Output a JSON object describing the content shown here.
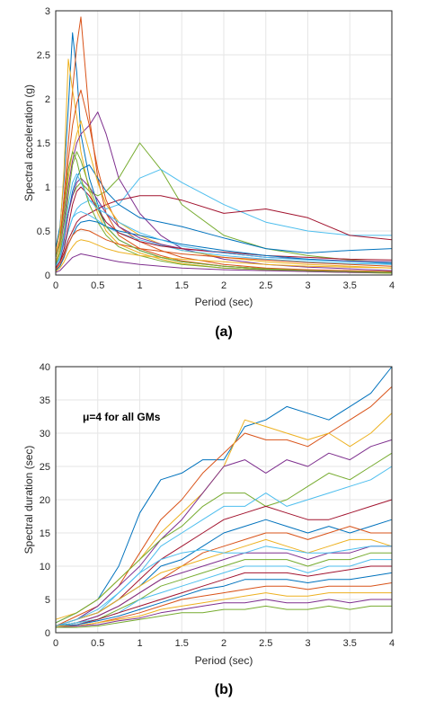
{
  "panels": [
    {
      "caption": "(a)"
    },
    {
      "caption": "(b)"
    }
  ],
  "palette": [
    "#0072BD",
    "#D95319",
    "#EDB120",
    "#7E2F8E",
    "#77AC30",
    "#4DBEEE",
    "#A2142F"
  ],
  "chart_data": [
    {
      "type": "line",
      "xlabel": "Period (sec)",
      "ylabel": "Spectral acceleration (g)",
      "xlim": [
        0,
        4
      ],
      "ylim": [
        0,
        3
      ],
      "xticks": [
        "0",
        "0.5",
        "1",
        "1.5",
        "2",
        "2.5",
        "3",
        "3.5",
        "4"
      ],
      "yticks": [
        "0",
        "0.5",
        "1",
        "1.5",
        "2",
        "2.5",
        "3"
      ],
      "grid": true,
      "x": [
        0,
        0.05,
        0.1,
        0.15,
        0.2,
        0.25,
        0.3,
        0.4,
        0.5,
        0.6,
        0.75,
        1.0,
        1.25,
        1.5,
        2.0,
        2.5,
        3.0,
        3.5,
        4.0
      ],
      "series": [
        {
          "values": [
            0.3,
            0.55,
            1.1,
            1.9,
            2.75,
            2.3,
            1.6,
            1.1,
            0.8,
            0.55,
            0.4,
            0.28,
            0.2,
            0.15,
            0.1,
            0.07,
            0.05,
            0.04,
            0.03
          ]
        },
        {
          "values": [
            0.2,
            0.4,
            0.9,
            1.5,
            2.1,
            2.6,
            2.93,
            1.8,
            1.1,
            0.7,
            0.45,
            0.3,
            0.22,
            0.16,
            0.1,
            0.07,
            0.05,
            0.04,
            0.03
          ]
        },
        {
          "values": [
            0.25,
            0.5,
            1.2,
            2.45,
            2.1,
            1.8,
            1.4,
            0.95,
            0.7,
            0.5,
            0.35,
            0.25,
            0.18,
            0.13,
            0.08,
            0.06,
            0.04,
            0.03,
            0.02
          ]
        },
        {
          "values": [
            0.15,
            0.3,
            0.6,
            1.0,
            1.3,
            1.5,
            1.6,
            1.7,
            1.85,
            1.6,
            1.1,
            0.7,
            0.45,
            0.3,
            0.18,
            0.12,
            0.09,
            0.07,
            0.05
          ]
        },
        {
          "values": [
            0.12,
            0.25,
            0.45,
            0.7,
            0.9,
            1.0,
            1.05,
            0.95,
            0.9,
            0.95,
            1.1,
            1.5,
            1.2,
            0.8,
            0.45,
            0.3,
            0.22,
            0.17,
            0.14
          ]
        },
        {
          "values": [
            0.1,
            0.2,
            0.35,
            0.5,
            0.65,
            0.75,
            0.8,
            0.85,
            0.8,
            0.75,
            0.8,
            1.1,
            1.2,
            1.05,
            0.8,
            0.6,
            0.5,
            0.45,
            0.45
          ]
        },
        {
          "values": [
            0.08,
            0.15,
            0.25,
            0.4,
            0.5,
            0.6,
            0.65,
            0.7,
            0.75,
            0.8,
            0.85,
            0.9,
            0.9,
            0.85,
            0.7,
            0.75,
            0.65,
            0.45,
            0.4
          ]
        },
        {
          "values": [
            0.1,
            0.2,
            0.4,
            0.7,
            0.95,
            1.1,
            1.2,
            1.25,
            1.1,
            0.95,
            0.8,
            0.65,
            0.6,
            0.55,
            0.42,
            0.3,
            0.25,
            0.28,
            0.3
          ]
        },
        {
          "values": [
            0.2,
            0.4,
            0.8,
            1.3,
            1.7,
            1.95,
            2.1,
            1.7,
            1.2,
            0.85,
            0.55,
            0.38,
            0.28,
            0.2,
            0.12,
            0.08,
            0.06,
            0.05,
            0.04
          ]
        },
        {
          "values": [
            0.15,
            0.3,
            0.7,
            1.1,
            1.4,
            1.6,
            1.75,
            1.4,
            1.05,
            0.8,
            0.6,
            0.45,
            0.35,
            0.28,
            0.2,
            0.15,
            0.12,
            0.1,
            0.08
          ]
        },
        {
          "values": [
            0.1,
            0.2,
            0.4,
            0.7,
            0.9,
            1.05,
            1.1,
            1.0,
            0.85,
            0.7,
            0.55,
            0.42,
            0.35,
            0.3,
            0.25,
            0.2,
            0.18,
            0.16,
            0.15
          ]
        },
        {
          "values": [
            0.2,
            0.35,
            0.7,
            1.2,
            1.4,
            1.3,
            1.1,
            0.8,
            0.6,
            0.45,
            0.32,
            0.22,
            0.16,
            0.12,
            0.08,
            0.06,
            0.04,
            0.03,
            0.02
          ]
        },
        {
          "values": [
            0.1,
            0.18,
            0.3,
            0.5,
            0.65,
            0.7,
            0.72,
            0.68,
            0.62,
            0.55,
            0.48,
            0.4,
            0.34,
            0.28,
            0.22,
            0.18,
            0.15,
            0.13,
            0.12
          ]
        },
        {
          "values": [
            0.08,
            0.15,
            0.3,
            0.55,
            0.8,
            0.95,
            1.0,
            0.9,
            0.75,
            0.6,
            0.48,
            0.38,
            0.33,
            0.3,
            0.26,
            0.22,
            0.2,
            0.18,
            0.17
          ]
        },
        {
          "values": [
            0.05,
            0.1,
            0.2,
            0.35,
            0.45,
            0.55,
            0.6,
            0.62,
            0.6,
            0.55,
            0.5,
            0.45,
            0.4,
            0.35,
            0.28,
            0.22,
            0.18,
            0.15,
            0.13
          ]
        },
        {
          "values": [
            0.06,
            0.12,
            0.22,
            0.35,
            0.45,
            0.5,
            0.52,
            0.5,
            0.45,
            0.4,
            0.35,
            0.3,
            0.27,
            0.24,
            0.2,
            0.17,
            0.14,
            0.12,
            0.1
          ]
        },
        {
          "values": [
            0.04,
            0.08,
            0.15,
            0.25,
            0.32,
            0.38,
            0.4,
            0.38,
            0.34,
            0.3,
            0.26,
            0.22,
            0.2,
            0.18,
            0.15,
            0.12,
            0.1,
            0.09,
            0.08
          ]
        },
        {
          "values": [
            0.03,
            0.05,
            0.1,
            0.15,
            0.2,
            0.22,
            0.24,
            0.22,
            0.2,
            0.18,
            0.15,
            0.12,
            0.1,
            0.08,
            0.06,
            0.05,
            0.04,
            0.03,
            0.03
          ]
        },
        {
          "values": [
            0.12,
            0.25,
            0.5,
            0.9,
            1.25,
            1.4,
            1.3,
            1.0,
            0.75,
            0.55,
            0.4,
            0.28,
            0.2,
            0.15,
            0.1,
            0.07,
            0.05,
            0.04,
            0.03
          ]
        },
        {
          "values": [
            0.1,
            0.2,
            0.45,
            0.8,
            1.05,
            1.15,
            1.05,
            0.85,
            0.75,
            0.7,
            0.6,
            0.48,
            0.4,
            0.33,
            0.25,
            0.2,
            0.17,
            0.15,
            0.14
          ]
        }
      ]
    },
    {
      "type": "line",
      "annotation": "μ=4 for all GMs",
      "xlabel": "Period (sec)",
      "ylabel": "Spectral duration (sec)",
      "xlim": [
        0,
        4
      ],
      "ylim": [
        0,
        40
      ],
      "xticks": [
        "0",
        "0.5",
        "1",
        "1.5",
        "2",
        "2.5",
        "3",
        "3.5",
        "4"
      ],
      "yticks": [
        "0",
        "5",
        "10",
        "15",
        "20",
        "25",
        "30",
        "35",
        "40"
      ],
      "grid": true,
      "x": [
        0,
        0.25,
        0.5,
        0.75,
        1.0,
        1.25,
        1.5,
        1.75,
        2.0,
        2.25,
        2.5,
        2.75,
        3.0,
        3.25,
        3.5,
        3.75,
        4.0
      ],
      "series": [
        {
          "values": [
            1.5,
            3,
            5,
            10,
            18,
            23,
            24,
            26,
            26,
            31,
            32,
            34,
            33,
            32,
            34,
            36,
            40
          ]
        },
        {
          "values": [
            1,
            2.5,
            4,
            7,
            12,
            17,
            20,
            24,
            27,
            30,
            29,
            29,
            28,
            30,
            32,
            34,
            37
          ]
        },
        {
          "values": [
            2,
            3,
            5,
            8,
            11,
            15,
            18,
            21,
            25,
            32,
            31,
            30,
            29,
            30,
            28,
            30,
            33
          ]
        },
        {
          "values": [
            1,
            2,
            4,
            7,
            10,
            14,
            17,
            21,
            25,
            26,
            24,
            26,
            25,
            27,
            26,
            28,
            29
          ]
        },
        {
          "values": [
            1.5,
            3,
            5,
            8,
            11,
            14,
            16,
            19,
            21,
            21,
            19,
            20,
            22,
            24,
            23,
            25,
            27
          ]
        },
        {
          "values": [
            1,
            2,
            3,
            6,
            9,
            13,
            15,
            17,
            19,
            19,
            21,
            19,
            20,
            21,
            22,
            23,
            25
          ]
        },
        {
          "values": [
            1,
            2,
            3,
            5,
            8,
            11,
            13,
            15,
            17,
            18,
            19,
            18,
            17,
            17,
            18,
            19,
            20
          ]
        },
        {
          "values": [
            1,
            2,
            3,
            5,
            7,
            10,
            11,
            13,
            15,
            16,
            17,
            16,
            15,
            16,
            15,
            16,
            17
          ]
        },
        {
          "values": [
            1,
            1.5,
            2.5,
            4,
            6,
            8,
            10,
            12,
            13,
            14,
            15,
            15,
            14,
            15,
            16,
            15,
            15
          ]
        },
        {
          "values": [
            1,
            2,
            3,
            5,
            7,
            9,
            10,
            11,
            12,
            13,
            14,
            13,
            12,
            13,
            14,
            14,
            13
          ]
        },
        {
          "values": [
            1,
            1.5,
            2.5,
            4,
            6,
            8,
            9,
            10,
            11,
            12,
            12,
            12,
            11,
            12,
            12,
            13,
            13
          ]
        },
        {
          "values": [
            1,
            1.5,
            2,
            3.5,
            5,
            7,
            8,
            9,
            10,
            11,
            11,
            11,
            10,
            11,
            11,
            12,
            12
          ]
        },
        {
          "values": [
            1,
            1.5,
            2,
            3,
            5,
            6,
            7,
            8,
            9,
            10,
            10,
            10,
            9,
            10,
            10,
            11,
            11
          ]
        },
        {
          "values": [
            1,
            1.2,
            2,
            3,
            4,
            5,
            6,
            7,
            8,
            9,
            9,
            9,
            8.5,
            9,
            9.5,
            10,
            10
          ]
        },
        {
          "values": [
            1,
            1.2,
            1.8,
            2.5,
            3.5,
            4.5,
            5.5,
            6.5,
            7,
            8,
            8,
            8,
            7.5,
            8,
            8,
            8.5,
            9
          ]
        },
        {
          "values": [
            1,
            1,
            1.5,
            2.2,
            3,
            4,
            5,
            5.5,
            6,
            6.5,
            7,
            7,
            6.5,
            7,
            7,
            7,
            7.5
          ]
        },
        {
          "values": [
            1,
            1,
            1.5,
            2,
            2.5,
            3.5,
            4,
            4.5,
            5,
            5.5,
            6,
            5.5,
            5.5,
            6,
            6,
            6,
            6
          ]
        },
        {
          "values": [
            0.8,
            1,
            1.2,
            1.8,
            2.2,
            3,
            3.5,
            4,
            4.5,
            4.5,
            5,
            4.5,
            4.5,
            5,
            4.5,
            5,
            5
          ]
        },
        {
          "values": [
            0.8,
            0.8,
            1,
            1.5,
            2,
            2.5,
            3,
            3,
            3.5,
            3.5,
            4,
            3.5,
            3.5,
            4,
            3.5,
            4,
            4
          ]
        },
        {
          "values": [
            1,
            2,
            3.5,
            6,
            9,
            11,
            12,
            12.5,
            12,
            12,
            13,
            12.5,
            12,
            12,
            12.5,
            13,
            13
          ]
        }
      ]
    }
  ]
}
